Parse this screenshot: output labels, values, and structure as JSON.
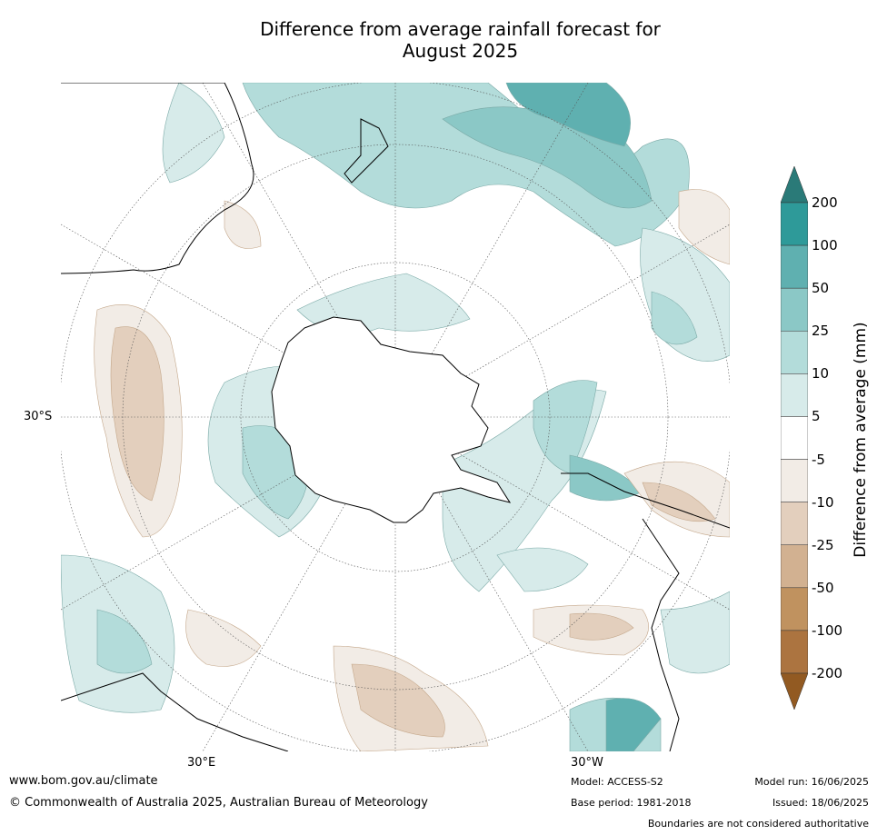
{
  "title_line1": "Difference from average rainfall forecast for",
  "title_line2": "August 2025",
  "map": {
    "latitude_label": "30°S",
    "longitude_labels": [
      "30°E",
      "30°W"
    ]
  },
  "colorbar": {
    "label": "Difference from average (mm)",
    "ticks": [
      "200",
      "100",
      "50",
      "25",
      "10",
      "5",
      "-5",
      "-10",
      "-25",
      "-50",
      "-100",
      "-200"
    ],
    "colors": [
      "#2a7a78",
      "#2e9a99",
      "#5fb0b0",
      "#8bc8c6",
      "#b3dcda",
      "#d7ebea",
      "#ffffff",
      "#f2ece6",
      "#e3cfbd",
      "#d2b191",
      "#c0925f",
      "#ac7440",
      "#925a22"
    ]
  },
  "footer": {
    "website": "www.bom.gov.au/climate",
    "copyright": "© Commonwealth of Australia 2025, Australian Bureau of Meteorology",
    "model": "Model: ACCESS-S2",
    "base_period": "Base period: 1981-2018",
    "model_run": "Model run: 16/06/2025",
    "issued": "Issued: 18/06/2025",
    "disclaimer": "Boundaries are not considered authoritative"
  }
}
